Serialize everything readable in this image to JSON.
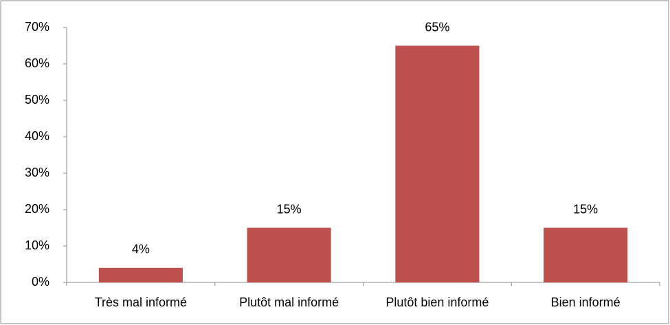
{
  "chart_data": {
    "type": "bar",
    "categories": [
      "Très mal informé",
      "Plutôt mal informé",
      "Plutôt bien informé",
      "Bien informé"
    ],
    "values": [
      4,
      15,
      65,
      15
    ],
    "value_labels": [
      "4%",
      "15%",
      "65%",
      "15%"
    ],
    "color": "#c0504d",
    "ylim": [
      0,
      70
    ],
    "yticks": [
      {
        "value": 0,
        "label": "0%"
      },
      {
        "value": 10,
        "label": "10%"
      },
      {
        "value": 20,
        "label": "20%"
      },
      {
        "value": 30,
        "label": "30%"
      },
      {
        "value": 40,
        "label": "40%"
      },
      {
        "value": 50,
        "label": "50%"
      },
      {
        "value": 60,
        "label": "60%"
      },
      {
        "value": 70,
        "label": "70%"
      }
    ],
    "grid": false
  }
}
